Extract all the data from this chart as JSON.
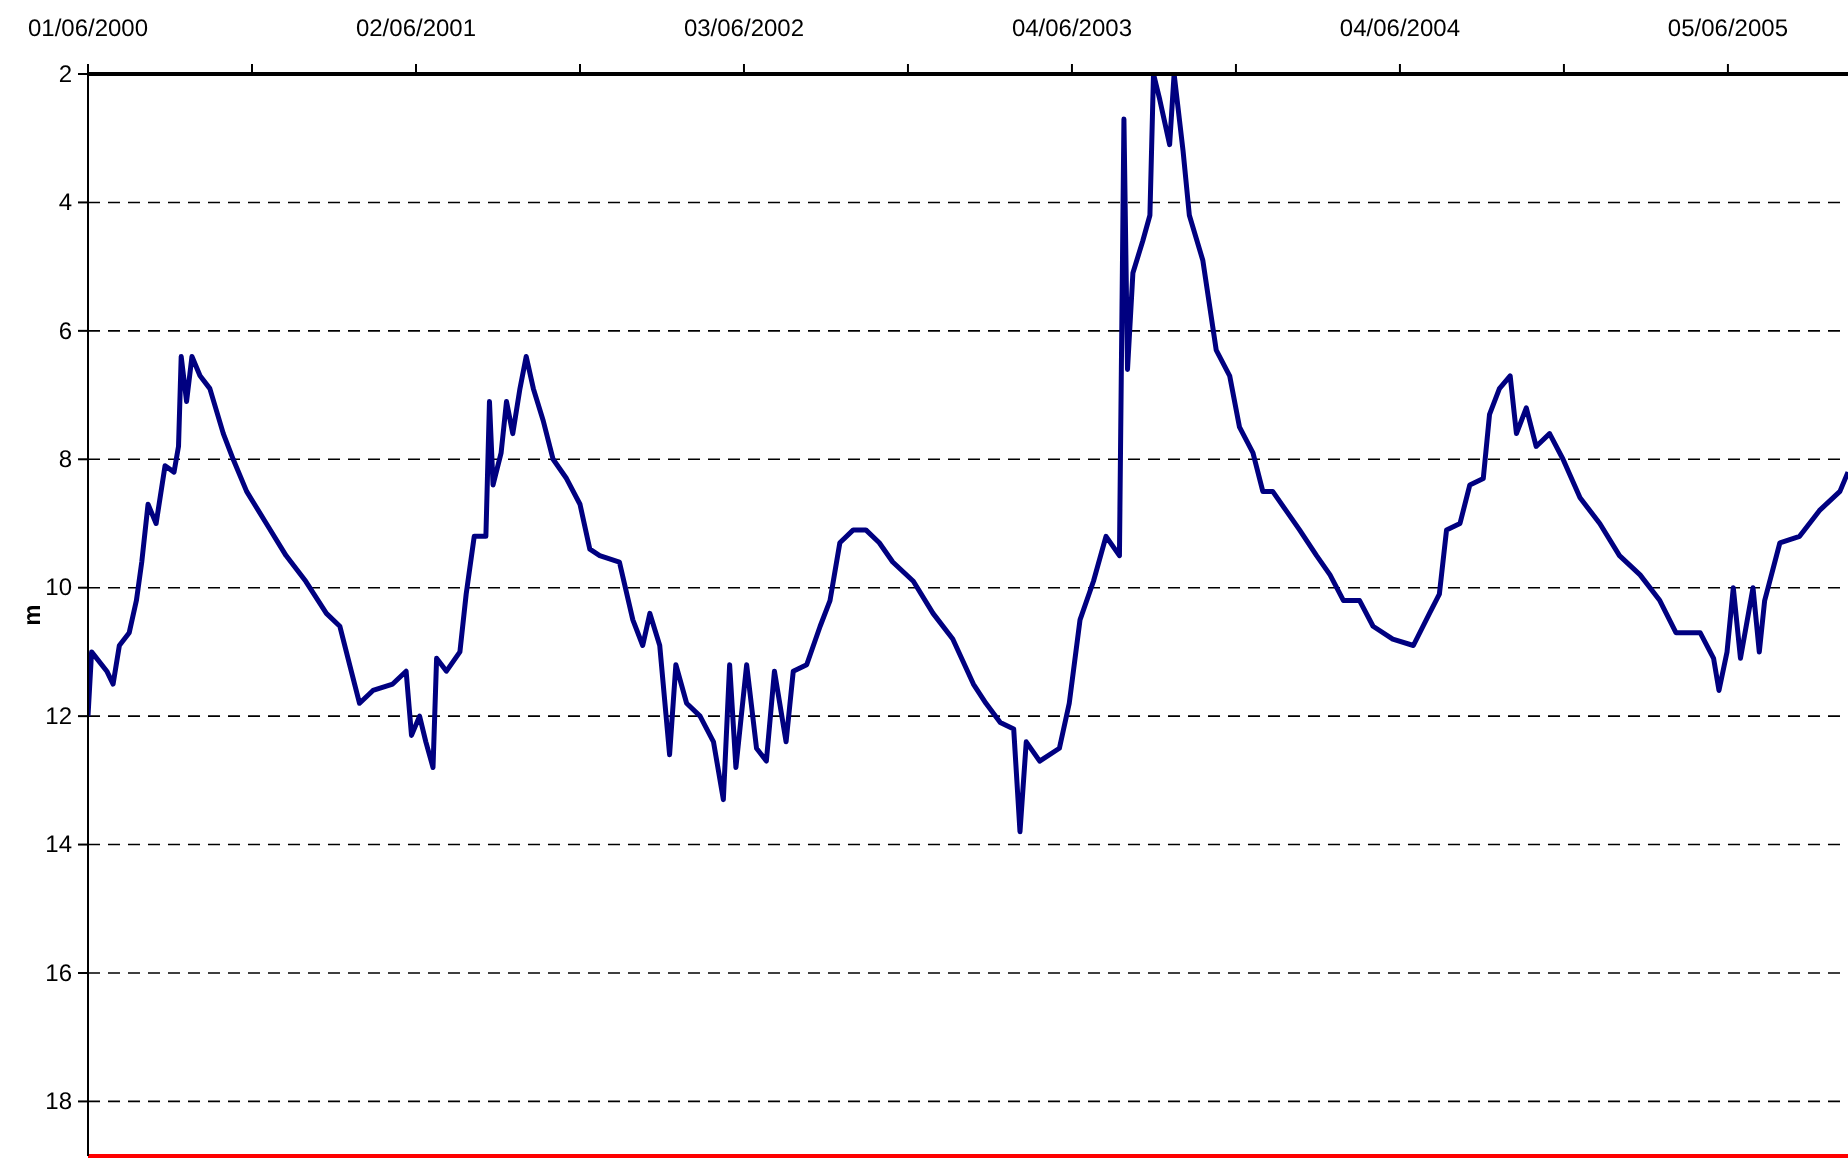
{
  "chart_data": {
    "type": "line",
    "ylabel": "m",
    "grid": "y",
    "line_style": "solid",
    "marker": "none",
    "xlim": [
      "2000-06-01",
      "2005-10-17"
    ],
    "xticks": [
      {
        "value": "2000-06-01",
        "label": "01/06/2000"
      },
      {
        "value": "2000-12-01",
        "label": null
      },
      {
        "value": "2001-06-02",
        "label": "02/06/2001"
      },
      {
        "value": "2001-12-02",
        "label": null
      },
      {
        "value": "2002-06-03",
        "label": "03/06/2002"
      },
      {
        "value": "2002-12-03",
        "label": null
      },
      {
        "value": "2003-06-04",
        "label": "04/06/2003"
      },
      {
        "value": "2003-12-04",
        "label": null
      },
      {
        "value": "2004-06-04",
        "label": "04/06/2004"
      },
      {
        "value": "2004-12-04",
        "label": null
      },
      {
        "value": "2005-06-05",
        "label": "05/06/2005"
      }
    ],
    "ylim": [
      18.85,
      2
    ],
    "yticks": [
      2,
      4,
      6,
      8,
      10,
      12,
      14,
      16,
      18
    ],
    "ref_lines": [
      {
        "axis": "y",
        "value": 18.85,
        "color": "#ff0000"
      }
    ],
    "series": [
      {
        "color": "#000080",
        "x": [
          "2000-06-01",
          "2000-06-05",
          "2000-06-22",
          "2000-06-29",
          "2000-07-06",
          "2000-07-17",
          "2000-07-25",
          "2000-07-31",
          "2000-08-07",
          "2000-08-16",
          "2000-08-26",
          "2000-09-05",
          "2000-09-10",
          "2000-09-13",
          "2000-09-19",
          "2000-09-25",
          "2000-10-04",
          "2000-10-15",
          "2000-10-30",
          "2000-11-10",
          "2000-11-25",
          "2000-12-17",
          "2001-01-08",
          "2001-01-30",
          "2001-02-22",
          "2001-03-09",
          "2001-03-20",
          "2001-03-31",
          "2001-04-15",
          "2001-05-07",
          "2001-05-22",
          "2001-05-28",
          "2001-06-06",
          "2001-06-13",
          "2001-06-21",
          "2001-06-25",
          "2001-07-06",
          "2001-07-21",
          "2001-07-28",
          "2001-08-06",
          "2001-08-19",
          "2001-08-23",
          "2001-08-27",
          "2001-09-05",
          "2001-09-11",
          "2001-09-18",
          "2001-09-26",
          "2001-10-03",
          "2001-10-11",
          "2001-10-22",
          "2001-11-02",
          "2001-11-17",
          "2001-12-02",
          "2001-12-13",
          "2001-12-24",
          "2002-01-15",
          "2002-01-30",
          "2002-02-10",
          "2002-02-18",
          "2002-03-01",
          "2002-03-12",
          "2002-03-19",
          "2002-03-31",
          "2002-04-15",
          "2002-04-30",
          "2002-05-11",
          "2002-05-18",
          "2002-05-25",
          "2002-06-06",
          "2002-06-17",
          "2002-06-28",
          "2002-07-07",
          "2002-07-20",
          "2002-07-28",
          "2002-08-12",
          "2002-08-27",
          "2002-09-07",
          "2002-09-18",
          "2002-10-03",
          "2002-10-17",
          "2002-11-01",
          "2002-11-16",
          "2002-12-09",
          "2002-12-31",
          "2003-01-22",
          "2003-02-14",
          "2003-02-28",
          "2003-03-16",
          "2003-03-31",
          "2003-04-07",
          "2003-04-14",
          "2003-04-29",
          "2003-05-21",
          "2003-06-01",
          "2003-06-13",
          "2003-06-28",
          "2003-07-12",
          "2003-07-27",
          "2003-08-01",
          "2003-08-05",
          "2003-08-11",
          "2003-08-22",
          "2003-08-30",
          "2003-09-03",
          "2003-09-10",
          "2003-09-21",
          "2003-09-26",
          "2003-10-06",
          "2003-10-13",
          "2003-10-28",
          "2003-11-12",
          "2003-11-27",
          "2003-12-08",
          "2003-12-23",
          "2004-01-03",
          "2004-01-14",
          "2004-01-29",
          "2004-02-13",
          "2004-03-03",
          "2004-03-18",
          "2004-04-02",
          "2004-04-20",
          "2004-05-05",
          "2004-05-27",
          "2004-06-19",
          "2004-07-07",
          "2004-07-18",
          "2004-07-26",
          "2004-08-10",
          "2004-08-21",
          "2004-09-05",
          "2004-09-12",
          "2004-09-23",
          "2004-10-05",
          "2004-10-12",
          "2004-10-23",
          "2004-11-03",
          "2004-11-18",
          "2004-12-03",
          "2004-12-22",
          "2005-01-13",
          "2005-02-04",
          "2005-02-27",
          "2005-03-21",
          "2005-04-08",
          "2005-05-05",
          "2005-05-20",
          "2005-05-26",
          "2005-06-04",
          "2005-06-11",
          "2005-06-19",
          "2005-07-03",
          "2005-07-10",
          "2005-07-16",
          "2005-08-02",
          "2005-08-24",
          "2005-09-15",
          "2005-10-08",
          "2005-10-17"
        ],
        "values": [
          12.0,
          11.0,
          11.3,
          11.5,
          10.9,
          10.7,
          10.2,
          9.6,
          8.7,
          9.0,
          8.1,
          8.2,
          7.8,
          6.4,
          7.1,
          6.4,
          6.7,
          6.9,
          7.6,
          8.0,
          8.5,
          9.0,
          9.5,
          9.9,
          10.4,
          10.6,
          11.2,
          11.8,
          11.6,
          11.5,
          11.3,
          12.3,
          12.0,
          12.4,
          12.8,
          11.1,
          11.3,
          11.0,
          10.1,
          9.2,
          9.2,
          7.1,
          8.4,
          7.9,
          7.1,
          7.6,
          6.9,
          6.4,
          6.9,
          7.4,
          8.0,
          8.3,
          8.7,
          9.4,
          9.5,
          9.6,
          10.5,
          10.9,
          10.4,
          10.9,
          12.6,
          11.2,
          11.8,
          12.0,
          12.4,
          13.3,
          11.2,
          12.8,
          11.2,
          12.5,
          12.7,
          11.3,
          12.4,
          11.3,
          11.2,
          10.6,
          10.2,
          9.3,
          9.1,
          9.1,
          9.3,
          9.6,
          9.9,
          10.4,
          10.8,
          11.5,
          11.8,
          12.1,
          12.2,
          13.8,
          12.4,
          12.7,
          12.5,
          11.8,
          10.5,
          9.9,
          9.2,
          9.5,
          2.7,
          6.6,
          5.1,
          4.6,
          4.2,
          2.0,
          2.4,
          3.1,
          2.0,
          3.2,
          4.2,
          4.9,
          6.3,
          6.7,
          7.5,
          7.9,
          8.5,
          8.5,
          8.8,
          9.1,
          9.5,
          9.8,
          10.2,
          10.2,
          10.6,
          10.8,
          10.9,
          10.4,
          10.1,
          9.1,
          9.0,
          8.4,
          8.3,
          7.3,
          6.9,
          6.7,
          7.6,
          7.2,
          7.8,
          7.6,
          8.0,
          8.6,
          9.0,
          9.5,
          9.8,
          10.2,
          10.7,
          10.7,
          11.1,
          11.6,
          11.0,
          10.0,
          11.1,
          10.0,
          11.0,
          10.2,
          9.3,
          9.2,
          8.8,
          8.5,
          8.2
        ]
      }
    ]
  }
}
